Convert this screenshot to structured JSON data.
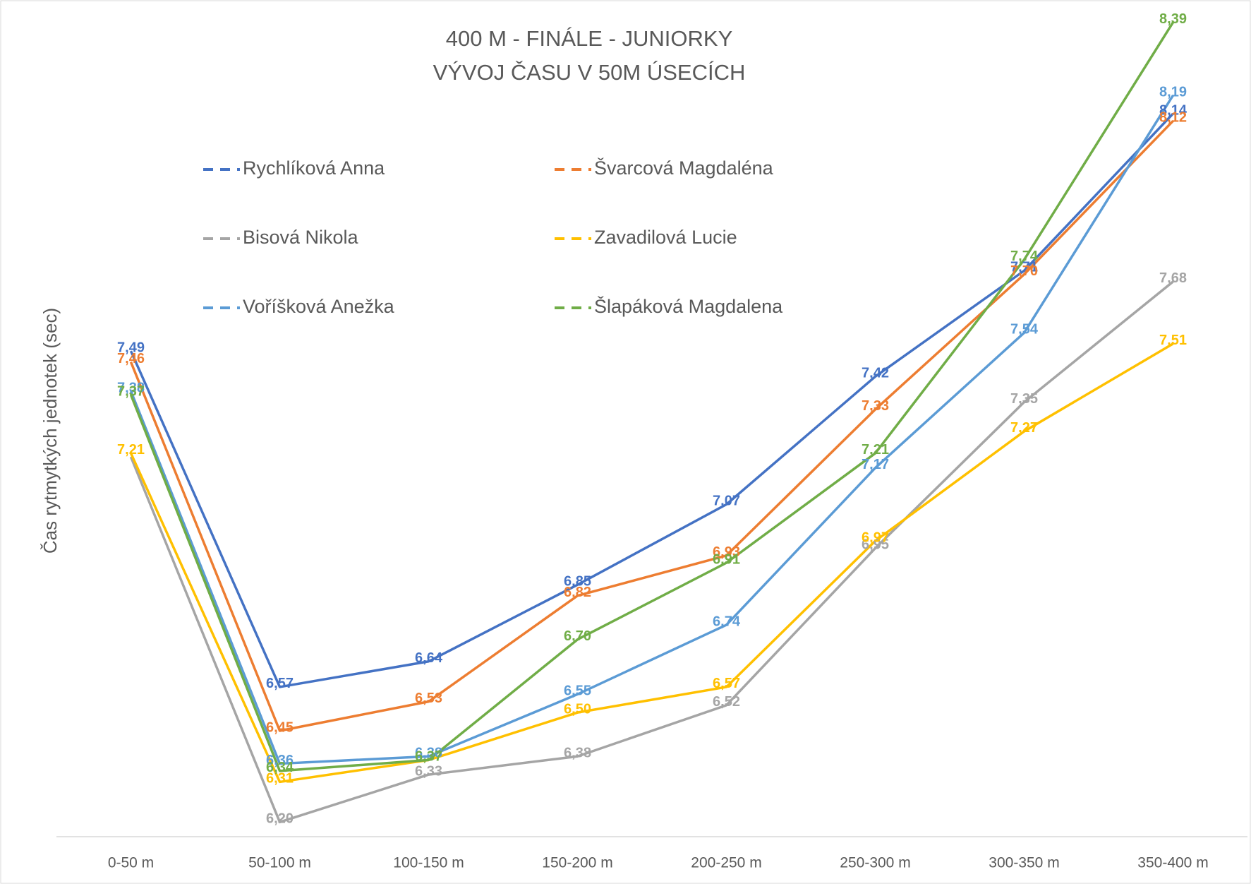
{
  "chart_data": {
    "type": "line",
    "title": "400 M  - FINÁLE - JUNIORKY",
    "subtitle": "VÝVOJ ČASU V 50M ÚSECÍCH",
    "y_label": "Čas rytmytkých jednotek (sec)",
    "categories": [
      "0-50 m",
      "50-100 m",
      "100-150 m",
      "150-200 m",
      "200-250 m",
      "250-300 m",
      "300-350 m",
      "350-400 m"
    ],
    "ylim": [
      6.16,
      8.43
    ],
    "series": [
      {
        "name": "Rychlíková Anna",
        "color": "#4472c4",
        "values": [
          7.49,
          6.57,
          6.64,
          6.85,
          7.07,
          7.42,
          7.71,
          8.14
        ],
        "value_labels": [
          "7,49",
          "6,57",
          "6,64",
          "6,85",
          "7,07",
          "7,42",
          "7,71",
          "8,14"
        ]
      },
      {
        "name": "Švarcová Magdaléna",
        "color": "#ed7d31",
        "values": [
          7.46,
          6.45,
          6.53,
          6.82,
          6.93,
          7.33,
          7.7,
          8.12
        ],
        "value_labels": [
          "7,46",
          "6,45",
          "6,53",
          "6,82",
          "6,93",
          "7,33",
          "7,70",
          "8,12"
        ]
      },
      {
        "name": "Bisová Nikola",
        "color": "#a5a5a5",
        "values": [
          7.2,
          6.2,
          6.33,
          6.38,
          6.52,
          6.95,
          7.35,
          7.68
        ],
        "value_labels": [
          null,
          "6,20",
          "6,33",
          "6,38",
          "6,52",
          "6,95",
          "7,35",
          "7,68"
        ]
      },
      {
        "name": "Zavadilová Lucie",
        "color": "#ffc000",
        "values": [
          7.21,
          6.31,
          6.37,
          6.5,
          6.57,
          6.97,
          7.27,
          7.51
        ],
        "value_labels": [
          "7,21",
          "6,31",
          null,
          "6,50",
          "6,57",
          "6,97",
          "7,27",
          "7,51"
        ]
      },
      {
        "name": "Voříšková Anežka",
        "color": "#5b9bd5",
        "values": [
          7.38,
          6.36,
          6.38,
          6.55,
          6.74,
          7.17,
          7.54,
          8.19
        ],
        "value_labels": [
          "7,38",
          "6,36",
          "6,38",
          "6,55",
          "6,74",
          "7,17",
          "7,54",
          "8,19"
        ]
      },
      {
        "name": "Šlapáková Magdalena",
        "color": "#70ad47",
        "values": [
          7.37,
          6.34,
          6.37,
          6.7,
          6.91,
          7.21,
          7.74,
          8.39
        ],
        "value_labels": [
          "7,37",
          "6,34",
          "6,37",
          "6,70",
          "6,91",
          "7,21",
          "7,74",
          "8,39"
        ]
      }
    ]
  }
}
